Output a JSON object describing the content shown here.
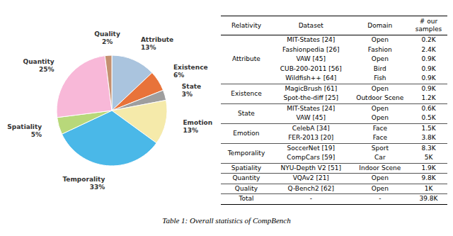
{
  "chart_data": [
    {
      "type": "pie",
      "categories": [
        "Attribute",
        "Existence",
        "State",
        "Emotion",
        "Temporality",
        "Spatiality",
        "Quantity",
        "Quality"
      ],
      "values": [
        13,
        6,
        3,
        13,
        33,
        5,
        25,
        2
      ],
      "value_labels": [
        "13%",
        "6%",
        "3%",
        "13%",
        "33%",
        "5%",
        "25%",
        "2%"
      ],
      "colors": [
        "#aac4de",
        "#e8733a",
        "#9e9e9e",
        "#f5eaaa",
        "#4ab8e8",
        "#b8d87a",
        "#f8b8d8",
        "#c49070"
      ],
      "data_labels": true
    },
    {
      "type": "table",
      "title": "Table 1: Overall statistics of CompBench",
      "series": [
        {
          "name": "Relativity",
          "values": [
            "Attribute",
            "Existence",
            "State",
            "Emotion",
            "Temporality",
            "Spatiality",
            "Quantity",
            "Quality",
            "Total"
          ]
        },
        {
          "name": "Dataset",
          "values": [
            "MIT-States [24]\nFashionpedia [26]\nVAW [45]\nCUB-200-2011 [56]\nWildfish++ [64]",
            "MagicBrush [61]\nSpot-the-diff [25]",
            "MIT-States [24]\nVAW [45]",
            "CelebA [34]\nFER-2013 [20]",
            "SoccerNet [19]\nCompCars [59]",
            "NYU-Depth V2 [51]",
            "VQAv2 [21]",
            "Q-Bench2 [62]",
            "-"
          ]
        },
        {
          "name": "Domain",
          "values": [
            "Open\nFashion\nOpen\nBird\nFish",
            "Open\nOutdoor Scene",
            "Open\nOpen",
            "Face\nFace",
            "Sport\nCar",
            "Indoor Scene",
            "Open",
            "Open",
            "-"
          ]
        },
        {
          "name": "# our\nsamples",
          "values": [
            "0.2K\n2.4K\n0.9K\n0.9K\n0.9K",
            "0.9K\n1.2K",
            "0.6K\n0.5K",
            "1.5K\n3.8K",
            "8.3K\n5K",
            "1.9K",
            "9.8K",
            "1K",
            "39.8K"
          ]
        }
      ]
    }
  ]
}
